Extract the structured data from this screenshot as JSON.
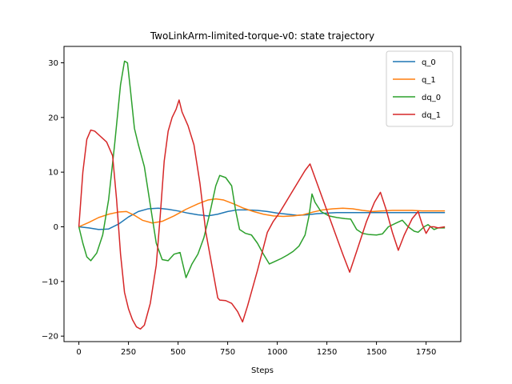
{
  "chart_data": {
    "type": "line",
    "title": "TwoLinkArm-limited-torque-v0: state trajectory",
    "xlabel": "Steps",
    "ylabel": "",
    "xlim": [
      -75,
      1925
    ],
    "ylim": [
      -21,
      33
    ],
    "xticks": [
      0,
      250,
      500,
      750,
      1000,
      1250,
      1500,
      1750
    ],
    "yticks": [
      -20,
      -10,
      0,
      10,
      20,
      30
    ],
    "grid": false,
    "legend_position": "top-right",
    "series": [
      {
        "name": "q_0",
        "color": "#1f77b4",
        "points": [
          [
            0,
            0
          ],
          [
            50,
            -0.2
          ],
          [
            100,
            -0.5
          ],
          [
            150,
            -0.4
          ],
          [
            200,
            0.5
          ],
          [
            250,
            1.8
          ],
          [
            300,
            2.8
          ],
          [
            350,
            3.3
          ],
          [
            400,
            3.4
          ],
          [
            450,
            3.2
          ],
          [
            500,
            2.9
          ],
          [
            550,
            2.5
          ],
          [
            600,
            2.2
          ],
          [
            650,
            2.0
          ],
          [
            700,
            2.3
          ],
          [
            750,
            2.8
          ],
          [
            800,
            3.1
          ],
          [
            850,
            3.1
          ],
          [
            900,
            3.0
          ],
          [
            950,
            2.8
          ],
          [
            1000,
            2.5
          ],
          [
            1050,
            2.3
          ],
          [
            1100,
            2.1
          ],
          [
            1150,
            2.2
          ],
          [
            1200,
            2.4
          ],
          [
            1250,
            2.5
          ],
          [
            1300,
            2.6
          ],
          [
            1350,
            2.6
          ],
          [
            1400,
            2.6
          ],
          [
            1450,
            2.6
          ],
          [
            1500,
            2.6
          ],
          [
            1550,
            2.6
          ],
          [
            1600,
            2.6
          ],
          [
            1650,
            2.6
          ],
          [
            1700,
            2.6
          ],
          [
            1750,
            2.6
          ],
          [
            1800,
            2.6
          ],
          [
            1845,
            2.6
          ]
        ]
      },
      {
        "name": "q_1",
        "color": "#ff7f0e",
        "points": [
          [
            0,
            0
          ],
          [
            50,
            0.8
          ],
          [
            100,
            1.7
          ],
          [
            150,
            2.3
          ],
          [
            200,
            2.7
          ],
          [
            240,
            2.8
          ],
          [
            280,
            2.1
          ],
          [
            320,
            1.2
          ],
          [
            370,
            0.7
          ],
          [
            420,
            1.0
          ],
          [
            480,
            2.0
          ],
          [
            540,
            3.2
          ],
          [
            600,
            4.2
          ],
          [
            650,
            4.9
          ],
          [
            690,
            5.1
          ],
          [
            730,
            4.9
          ],
          [
            780,
            4.2
          ],
          [
            830,
            3.4
          ],
          [
            880,
            2.8
          ],
          [
            930,
            2.3
          ],
          [
            980,
            2.0
          ],
          [
            1030,
            1.9
          ],
          [
            1080,
            2.0
          ],
          [
            1130,
            2.2
          ],
          [
            1180,
            2.7
          ],
          [
            1230,
            3.1
          ],
          [
            1280,
            3.3
          ],
          [
            1330,
            3.4
          ],
          [
            1380,
            3.3
          ],
          [
            1430,
            3.0
          ],
          [
            1480,
            2.8
          ],
          [
            1530,
            2.9
          ],
          [
            1580,
            3.0
          ],
          [
            1630,
            3.0
          ],
          [
            1680,
            3.0
          ],
          [
            1730,
            2.9
          ],
          [
            1780,
            2.9
          ],
          [
            1845,
            2.9
          ]
        ]
      },
      {
        "name": "dq_0",
        "color": "#2ca02c",
        "points": [
          [
            0,
            0
          ],
          [
            20,
            -3.0
          ],
          [
            40,
            -5.5
          ],
          [
            60,
            -6.2
          ],
          [
            90,
            -4.8
          ],
          [
            120,
            -1.5
          ],
          [
            150,
            5.0
          ],
          [
            180,
            15.0
          ],
          [
            210,
            26.0
          ],
          [
            230,
            30.3
          ],
          [
            245,
            30.0
          ],
          [
            260,
            25.0
          ],
          [
            280,
            18.0
          ],
          [
            300,
            15.0
          ],
          [
            330,
            11.0
          ],
          [
            360,
            4.0
          ],
          [
            390,
            -3.0
          ],
          [
            420,
            -6.0
          ],
          [
            450,
            -6.2
          ],
          [
            480,
            -5.0
          ],
          [
            510,
            -4.7
          ],
          [
            540,
            -9.3
          ],
          [
            570,
            -6.8
          ],
          [
            600,
            -5.0
          ],
          [
            630,
            -2.0
          ],
          [
            660,
            2.5
          ],
          [
            690,
            7.5
          ],
          [
            710,
            9.4
          ],
          [
            740,
            9.0
          ],
          [
            770,
            7.5
          ],
          [
            790,
            3.0
          ],
          [
            810,
            -0.5
          ],
          [
            840,
            -1.2
          ],
          [
            870,
            -1.5
          ],
          [
            900,
            -3.0
          ],
          [
            930,
            -5.0
          ],
          [
            960,
            -6.8
          ],
          [
            990,
            -6.3
          ],
          [
            1020,
            -5.8
          ],
          [
            1050,
            -5.2
          ],
          [
            1080,
            -4.5
          ],
          [
            1110,
            -3.5
          ],
          [
            1140,
            -1.5
          ],
          [
            1160,
            2.0
          ],
          [
            1175,
            6.0
          ],
          [
            1190,
            4.5
          ],
          [
            1220,
            2.8
          ],
          [
            1260,
            2.0
          ],
          [
            1300,
            1.7
          ],
          [
            1340,
            1.5
          ],
          [
            1370,
            1.4
          ],
          [
            1400,
            -0.5
          ],
          [
            1430,
            -1.2
          ],
          [
            1460,
            -1.4
          ],
          [
            1500,
            -1.5
          ],
          [
            1530,
            -1.3
          ],
          [
            1560,
            0.0
          ],
          [
            1600,
            0.7
          ],
          [
            1630,
            1.2
          ],
          [
            1660,
            0.0
          ],
          [
            1690,
            -0.8
          ],
          [
            1710,
            -1.0
          ],
          [
            1740,
            0.0
          ],
          [
            1760,
            0.4
          ],
          [
            1790,
            -0.5
          ],
          [
            1810,
            -0.2
          ],
          [
            1845,
            -0.2
          ]
        ]
      },
      {
        "name": "dq_1",
        "color": "#d62728",
        "points": [
          [
            0,
            0
          ],
          [
            20,
            10.0
          ],
          [
            40,
            16.0
          ],
          [
            60,
            17.7
          ],
          [
            80,
            17.5
          ],
          [
            110,
            16.5
          ],
          [
            140,
            15.5
          ],
          [
            170,
            13.0
          ],
          [
            190,
            5.0
          ],
          [
            210,
            -5.0
          ],
          [
            230,
            -12.0
          ],
          [
            250,
            -15.0
          ],
          [
            270,
            -17.0
          ],
          [
            290,
            -18.3
          ],
          [
            310,
            -18.7
          ],
          [
            330,
            -18.0
          ],
          [
            360,
            -14.0
          ],
          [
            390,
            -7.0
          ],
          [
            410,
            2.0
          ],
          [
            430,
            12.0
          ],
          [
            450,
            17.5
          ],
          [
            470,
            20.0
          ],
          [
            490,
            21.5
          ],
          [
            505,
            23.2
          ],
          [
            520,
            21.0
          ],
          [
            550,
            18.5
          ],
          [
            580,
            15.0
          ],
          [
            610,
            8.0
          ],
          [
            640,
            -1.0
          ],
          [
            670,
            -7.0
          ],
          [
            700,
            -13.0
          ],
          [
            710,
            -13.4
          ],
          [
            740,
            -13.5
          ],
          [
            770,
            -14.0
          ],
          [
            800,
            -15.5
          ],
          [
            825,
            -17.4
          ],
          [
            850,
            -14.5
          ],
          [
            900,
            -8.0
          ],
          [
            950,
            -1.0
          ],
          [
            980,
            1.0
          ],
          [
            1010,
            2.5
          ],
          [
            1060,
            5.5
          ],
          [
            1110,
            8.5
          ],
          [
            1140,
            10.3
          ],
          [
            1165,
            11.5
          ],
          [
            1190,
            9.0
          ],
          [
            1240,
            4.0
          ],
          [
            1290,
            -1.0
          ],
          [
            1330,
            -5.0
          ],
          [
            1365,
            -8.3
          ],
          [
            1400,
            -4.5
          ],
          [
            1450,
            1.0
          ],
          [
            1490,
            4.5
          ],
          [
            1520,
            6.3
          ],
          [
            1550,
            3.0
          ],
          [
            1580,
            -1.0
          ],
          [
            1610,
            -4.3
          ],
          [
            1640,
            -1.5
          ],
          [
            1680,
            1.5
          ],
          [
            1710,
            2.8
          ],
          [
            1730,
            0.5
          ],
          [
            1750,
            -1.2
          ],
          [
            1770,
            0.0
          ],
          [
            1790,
            0.0
          ],
          [
            1810,
            -0.2
          ],
          [
            1845,
            0.0
          ]
        ]
      }
    ]
  }
}
